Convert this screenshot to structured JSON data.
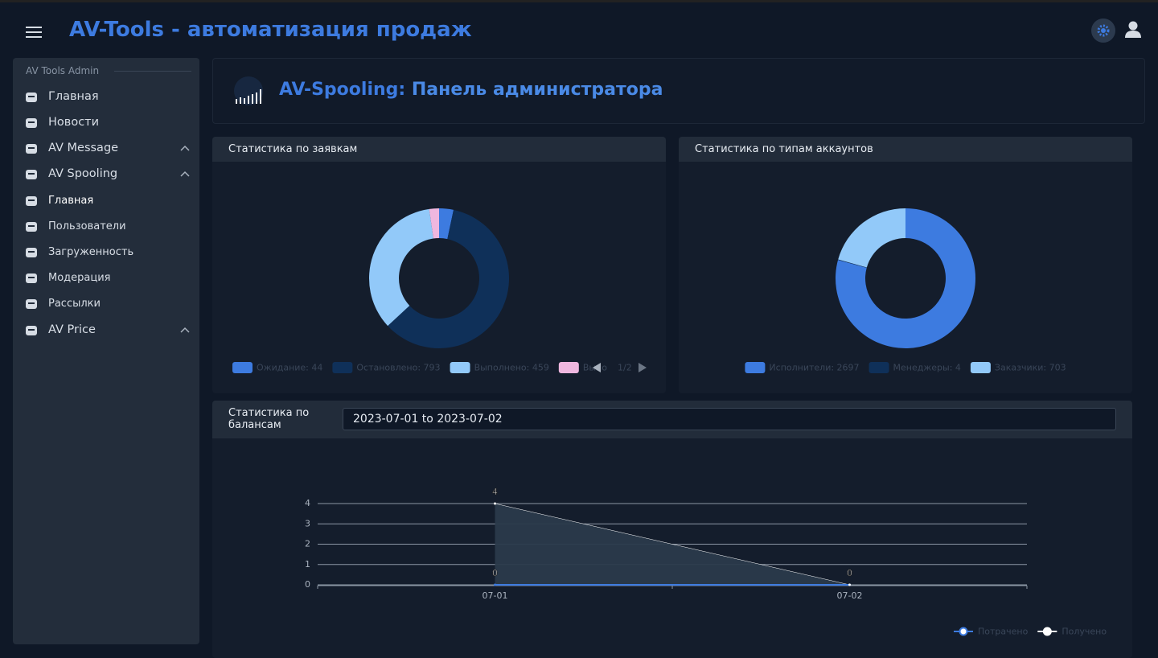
{
  "header": {
    "title": "AV-Tools - автоматизация продаж"
  },
  "sidebar": {
    "section": "AV Tools Admin",
    "items": [
      {
        "label": "Главная"
      },
      {
        "label": "Новости"
      },
      {
        "label": "AV Message",
        "expandable": true
      },
      {
        "label": "AV Spooling",
        "expandable": true
      },
      {
        "label": "Главная",
        "sub": true,
        "active": true
      },
      {
        "label": "Пользователи",
        "sub": true
      },
      {
        "label": "Загруженность",
        "sub": true
      },
      {
        "label": "Модерация",
        "sub": true
      },
      {
        "label": "Рассылки",
        "sub": true
      },
      {
        "label": "AV Price",
        "expandable": true
      }
    ]
  },
  "page_title": {
    "prefix": "AV-Spooling:",
    "text": "Панель администратора"
  },
  "chart_data": [
    {
      "type": "pie",
      "donut": true,
      "title": "Статистика по заявкам",
      "categories": [
        "Ожидание: 44",
        "Остановлено: 793",
        "Выполнено: 459",
        "Выпо"
      ],
      "values": [
        44,
        793,
        459,
        30
      ],
      "colors": [
        "#3d7be0",
        "#0f3059",
        "#92c9f9",
        "#efb7df"
      ],
      "legend_page": "1/2"
    },
    {
      "type": "pie",
      "donut": true,
      "title": "Статистика по типам аккаунтов",
      "categories": [
        "Исполнители: 2697",
        "Менеджеры: 4",
        "Заказчики: 703"
      ],
      "values": [
        2697,
        4,
        703
      ],
      "colors": [
        "#3d7be0",
        "#0f3059",
        "#92c9f9"
      ]
    },
    {
      "type": "line",
      "title": "Статистика по балансам",
      "date_range": "2023-07-01 to 2023-07-02",
      "categories": [
        "07-01",
        "07-02"
      ],
      "ylim": [
        0,
        4
      ],
      "yticks": [
        0,
        1,
        2,
        3,
        4
      ],
      "grid": true,
      "series": [
        {
          "name": "Потрачено",
          "color": "#3d7be0",
          "values": [
            0,
            0
          ]
        },
        {
          "name": "Получено",
          "color": "#ffffff",
          "area": true,
          "values": [
            4,
            0
          ]
        }
      ]
    }
  ]
}
